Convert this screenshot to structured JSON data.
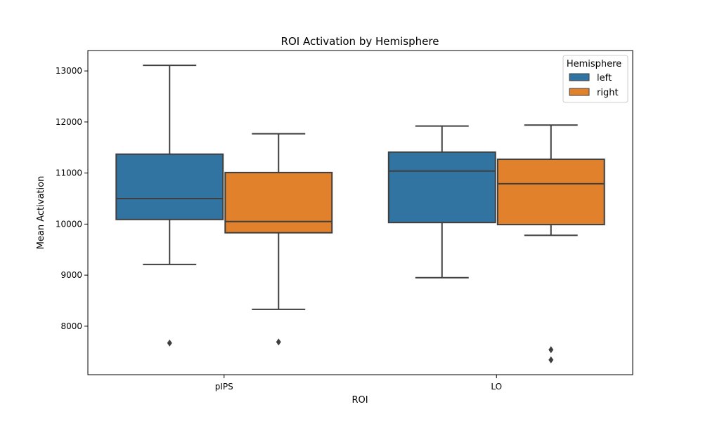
{
  "chart_data": {
    "type": "box",
    "title": "ROI Activation by Hemisphere",
    "xlabel": "ROI",
    "ylabel": "Mean Activation",
    "categories": [
      "pIPS",
      "LO"
    ],
    "ylim": [
      7050,
      13400
    ],
    "yticks": [
      8000,
      9000,
      10000,
      11000,
      12000,
      13000
    ],
    "grid": false,
    "legend": {
      "title": "Hemisphere",
      "position": "top-right"
    },
    "series": [
      {
        "name": "left",
        "color": "#3274a1",
        "boxes": [
          {
            "category": "pIPS",
            "whisker_low": 9210,
            "q1": 10090,
            "median": 10500,
            "q3": 11370,
            "whisker_high": 13110,
            "outliers": [
              7670
            ]
          },
          {
            "category": "LO",
            "whisker_low": 8950,
            "q1": 10030,
            "median": 11040,
            "q3": 11410,
            "whisker_high": 11920,
            "outliers": []
          }
        ]
      },
      {
        "name": "right",
        "color": "#e1812c",
        "boxes": [
          {
            "category": "pIPS",
            "whisker_low": 8330,
            "q1": 9830,
            "median": 10050,
            "q3": 11010,
            "whisker_high": 11770,
            "outliers": [
              7690
            ]
          },
          {
            "category": "LO",
            "whisker_low": 9780,
            "q1": 9990,
            "median": 10790,
            "q3": 11270,
            "whisker_high": 11940,
            "outliers": [
              7540,
              7340
            ]
          }
        ]
      }
    ]
  }
}
